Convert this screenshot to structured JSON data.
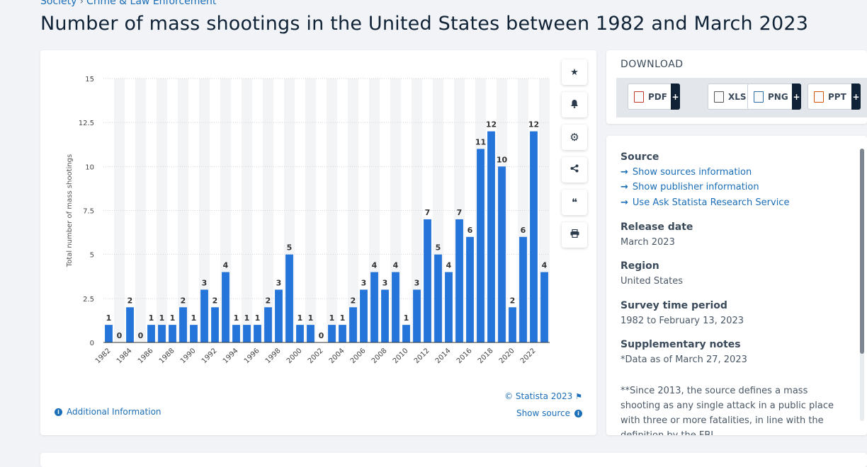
{
  "breadcrumb": {
    "parent": "Society",
    "current": "Crime & Law Enforcement"
  },
  "page_title": "Number of mass shootings in the United States between 1982 and March 2023",
  "toolbar": [
    {
      "name": "favorite-button",
      "icon": "star-icon",
      "glyph": "★"
    },
    {
      "name": "notify-button",
      "icon": "bell-icon",
      "glyph": "🔔"
    },
    {
      "name": "settings-button",
      "icon": "gear-icon",
      "glyph": "⚙"
    },
    {
      "name": "share-button",
      "icon": "share-icon",
      "glyph": "⋖"
    },
    {
      "name": "cite-button",
      "icon": "quote-icon",
      "glyph": "❝"
    },
    {
      "name": "print-button",
      "icon": "printer-icon",
      "glyph": "⎙"
    }
  ],
  "copyright": "© Statista 2023",
  "additional_info": "Additional Information",
  "show_source": "Show source",
  "download": {
    "title": "DOWNLOAD",
    "buttons": [
      {
        "label": "PDF",
        "icon": "pdf-file-icon",
        "color": "#c0392b"
      },
      {
        "label": "XLS",
        "icon": "xls-file-icon",
        "color": "#555555"
      },
      {
        "label": "PNG",
        "icon": "png-file-icon",
        "color": "#2e6da4"
      },
      {
        "label": "PPT",
        "icon": "ppt-file-icon",
        "color": "#d35400"
      }
    ],
    "plus": "+"
  },
  "info": {
    "source_heading": "Source",
    "source_links": [
      "Show sources information",
      "Show publisher information",
      "Use Ask Statista Research Service"
    ],
    "release_heading": "Release date",
    "release_value": "March 2023",
    "region_heading": "Region",
    "region_value": "United States",
    "survey_heading": "Survey time period",
    "survey_value": "1982 to February 13, 2023",
    "supp_heading": "Supplementary notes",
    "supp_value": "*Data as of March 27, 2023",
    "supp_note": "**Since 2013, the source defines a mass shooting as any single attack in a public place with three or more fatalities, in line with the definition by the FBI"
  },
  "colors": {
    "bar": "#2474d9",
    "accent": "#1b6eb8",
    "title": "#0f2236"
  },
  "chart_data": {
    "type": "bar",
    "title": "Number of mass shootings in the United States between 1982 and March 2023",
    "xlabel": "",
    "ylabel": "Total number of mass shootings",
    "ylim": [
      0,
      15
    ],
    "yticks": [
      0,
      2.5,
      5,
      7.5,
      10,
      12.5,
      15
    ],
    "ytick_labels": [
      "0",
      "2.5",
      "5",
      "7.5",
      "10",
      "12.5",
      "15"
    ],
    "categories": [
      "1982",
      "1983",
      "1984",
      "1985",
      "1986",
      "1987",
      "1988",
      "1989",
      "1990",
      "1991",
      "1992",
      "1993",
      "1994",
      "1995",
      "1996",
      "1997",
      "1998",
      "1999",
      "2000",
      "2001",
      "2002",
      "2003",
      "2004",
      "2005",
      "2006",
      "2007",
      "2008",
      "2009",
      "2010",
      "2011",
      "2012",
      "2013",
      "2014",
      "2015",
      "2016",
      "2017",
      "2018",
      "2019",
      "2020",
      "2021",
      "2022",
      "2023"
    ],
    "x_tick_labels": [
      "1982",
      "1984",
      "1986",
      "1988",
      "1990",
      "1992",
      "1994",
      "1996",
      "1998",
      "2000",
      "2002",
      "2004",
      "2006",
      "2008",
      "2010",
      "2012",
      "2014",
      "2016",
      "2018",
      "2020",
      "2022"
    ],
    "values": [
      1,
      0,
      2,
      0,
      1,
      1,
      1,
      2,
      1,
      3,
      2,
      4,
      1,
      1,
      1,
      2,
      3,
      5,
      1,
      1,
      0,
      1,
      1,
      2,
      3,
      4,
      3,
      4,
      1,
      3,
      7,
      5,
      4,
      7,
      6,
      11,
      12,
      10,
      2,
      6,
      12,
      4
    ],
    "data_labels": true,
    "grid": true
  }
}
